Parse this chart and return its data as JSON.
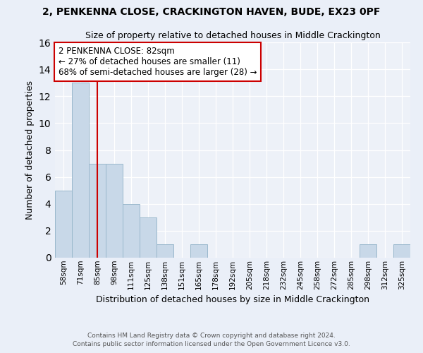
{
  "title1": "2, PENKENNA CLOSE, CRACKINGTON HAVEN, BUDE, EX23 0PF",
  "title2": "Size of property relative to detached houses in Middle Crackington",
  "xlabel": "Distribution of detached houses by size in Middle Crackington",
  "ylabel": "Number of detached properties",
  "categories": [
    "58sqm",
    "71sqm",
    "85sqm",
    "98sqm",
    "111sqm",
    "125sqm",
    "138sqm",
    "151sqm",
    "165sqm",
    "178sqm",
    "192sqm",
    "205sqm",
    "218sqm",
    "232sqm",
    "245sqm",
    "258sqm",
    "272sqm",
    "285sqm",
    "298sqm",
    "312sqm",
    "325sqm"
  ],
  "values": [
    5,
    13,
    7,
    7,
    4,
    3,
    1,
    0,
    1,
    0,
    0,
    0,
    0,
    0,
    0,
    0,
    0,
    0,
    1,
    0,
    1
  ],
  "bar_color": "#c8d8e8",
  "bar_edge_color": "#9ab8cc",
  "vline_x": 2.0,
  "vline_color": "#cc0000",
  "annotation_line1": "2 PENKENNA CLOSE: 82sqm",
  "annotation_line2": "← 27% of detached houses are smaller (11)",
  "annotation_line3": "68% of semi-detached houses are larger (28) →",
  "annotation_box_color": "#ffffff",
  "annotation_box_edge": "#cc0000",
  "ylim": [
    0,
    16
  ],
  "yticks": [
    0,
    2,
    4,
    6,
    8,
    10,
    12,
    14,
    16
  ],
  "footer1": "Contains HM Land Registry data © Crown copyright and database right 2024.",
  "footer2": "Contains public sector information licensed under the Open Government Licence v3.0.",
  "bg_color": "#eaeff8",
  "plot_bg_color": "#edf1f8"
}
